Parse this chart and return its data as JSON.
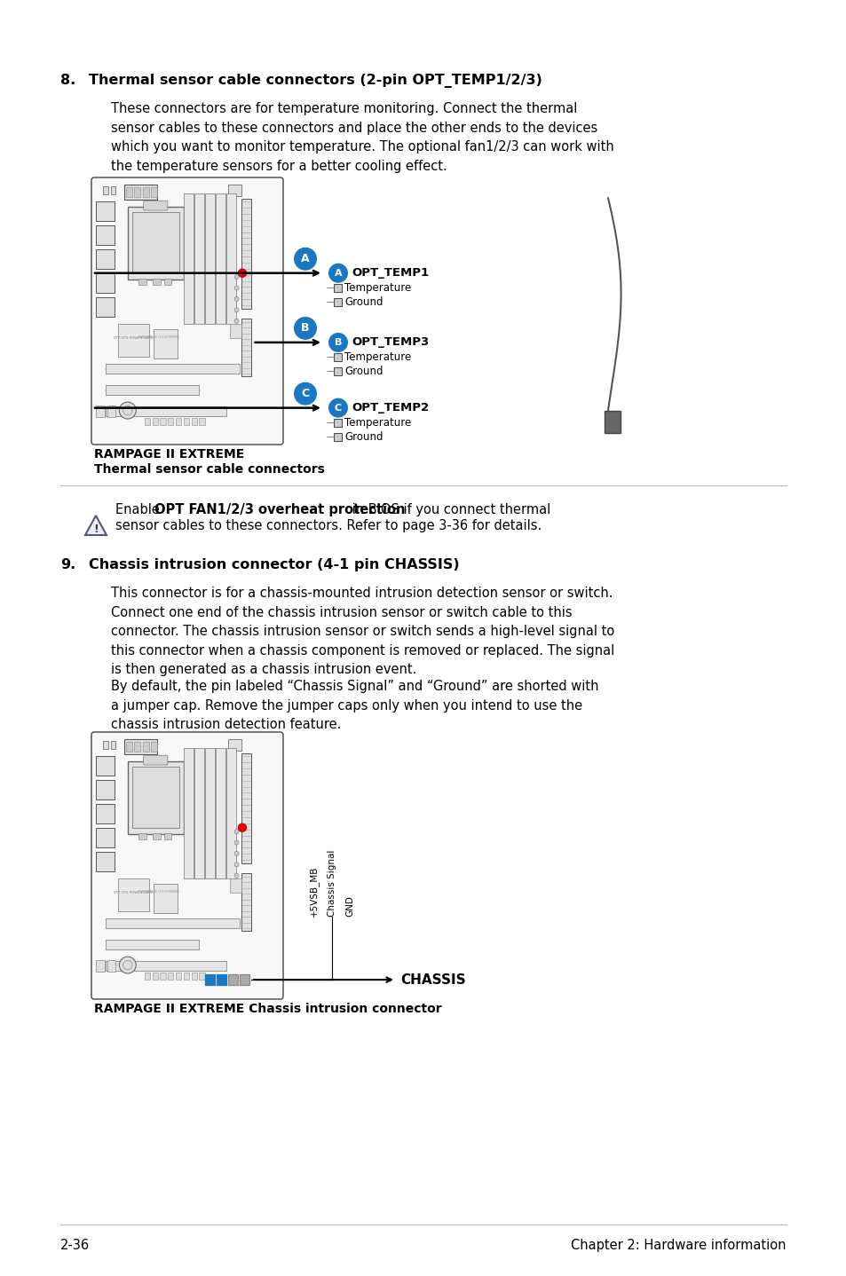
{
  "bg_color": "#ffffff",
  "text_color": "#000000",
  "section8_number": "8.",
  "section8_title": "Thermal sensor cable connectors (2-pin OPT_TEMP1/2/3)",
  "section8_body": "These connectors are for temperature monitoring. Connect the thermal\nsensor cables to these connectors and place the other ends to the devices\nwhich you want to monitor temperature. The optional fan1/2/3 can work with\nthe temperature sensors for a better cooling effect.",
  "diagram1_caption_line1": "RAMPAGE II EXTREME",
  "diagram1_caption_line2": "Thermal sensor cable connectors",
  "note_text_pre": "Enable ",
  "note_text_bold": "OPT FAN1/2/3 overheat protection",
  "note_text_post": " in BIOS if you connect thermal",
  "note_text_line2": "sensor cables to these connectors. Refer to page 3-36 for details.",
  "section9_number": "9.",
  "section9_title": "Chassis intrusion connector (4-1 pin CHASSIS)",
  "section9_body1": "This connector is for a chassis-mounted intrusion detection sensor or switch.\nConnect one end of the chassis intrusion sensor or switch cable to this\nconnector. The chassis intrusion sensor or switch sends a high-level signal to\nthis connector when a chassis component is removed or replaced. The signal\nis then generated as a chassis intrusion event.",
  "section9_body2": "By default, the pin labeled “Chassis Signal” and “Ground” are shorted with\na jumper cap. Remove the jumper caps only when you intend to use the\nchassis intrusion detection feature.",
  "diagram2_caption": "RAMPAGE II EXTREME Chassis intrusion connector",
  "footer_left": "2-36",
  "footer_right": "Chapter 2: Hardware information",
  "opt_temp1_label": "OPT_TEMP1",
  "opt_temp3_label": "OPT_TEMP3",
  "opt_temp2_label": "OPT_TEMP2",
  "chassis_label": "CHASSIS",
  "pin_temp_labels": [
    "Temperature",
    "Ground"
  ],
  "chassis_pins": [
    "+5VSB_MB",
    "Chassis Signal",
    "GND"
  ],
  "circle_color": "#1a78c2",
  "board_edge": "#444444",
  "board_fill": "#f8f8f8",
  "component_edge": "#555555",
  "component_fill": "#e8e8e8"
}
